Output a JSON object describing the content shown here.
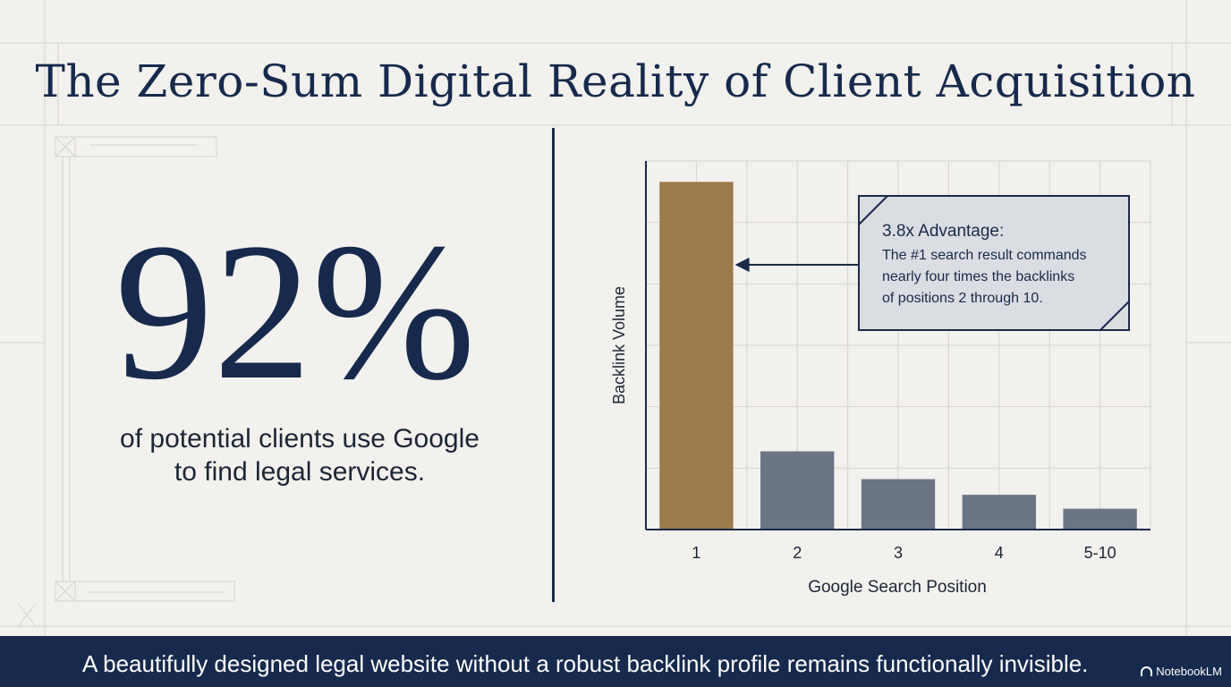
{
  "title": "The Zero-Sum Digital Reality of Client Acquisition",
  "stat": {
    "value": "92%",
    "caption_line1": "of potential clients use Google",
    "caption_line2": "to find legal services."
  },
  "footer": {
    "text": "A beautifully designed legal website without a robust backlink profile remains functionally invisible.",
    "brand": "NotebookLM",
    "brand_icon": "notebooklm-logo-icon"
  },
  "colors": {
    "navy": "#172a4d",
    "highlight_bar": "#9c7a4c",
    "other_bars": "#6b7585",
    "background": "#f2f1ed",
    "callout_bg": "#dadde2"
  },
  "chart_data": {
    "type": "bar",
    "categories": [
      "1",
      "2",
      "3",
      "4",
      "5-10"
    ],
    "values": [
      100,
      22.5,
      14.5,
      10,
      6
    ],
    "highlight_index": 0,
    "xlabel": "Google Search Position",
    "ylabel": "Backlink Volume",
    "ylim": [
      0,
      106
    ],
    "grid": true,
    "annotation": {
      "title": "3.8x Advantage:",
      "lines": [
        "The #1 search result commands",
        "nearly four times the backlinks",
        "of positions 2 through 10."
      ],
      "points_to": "1"
    }
  }
}
